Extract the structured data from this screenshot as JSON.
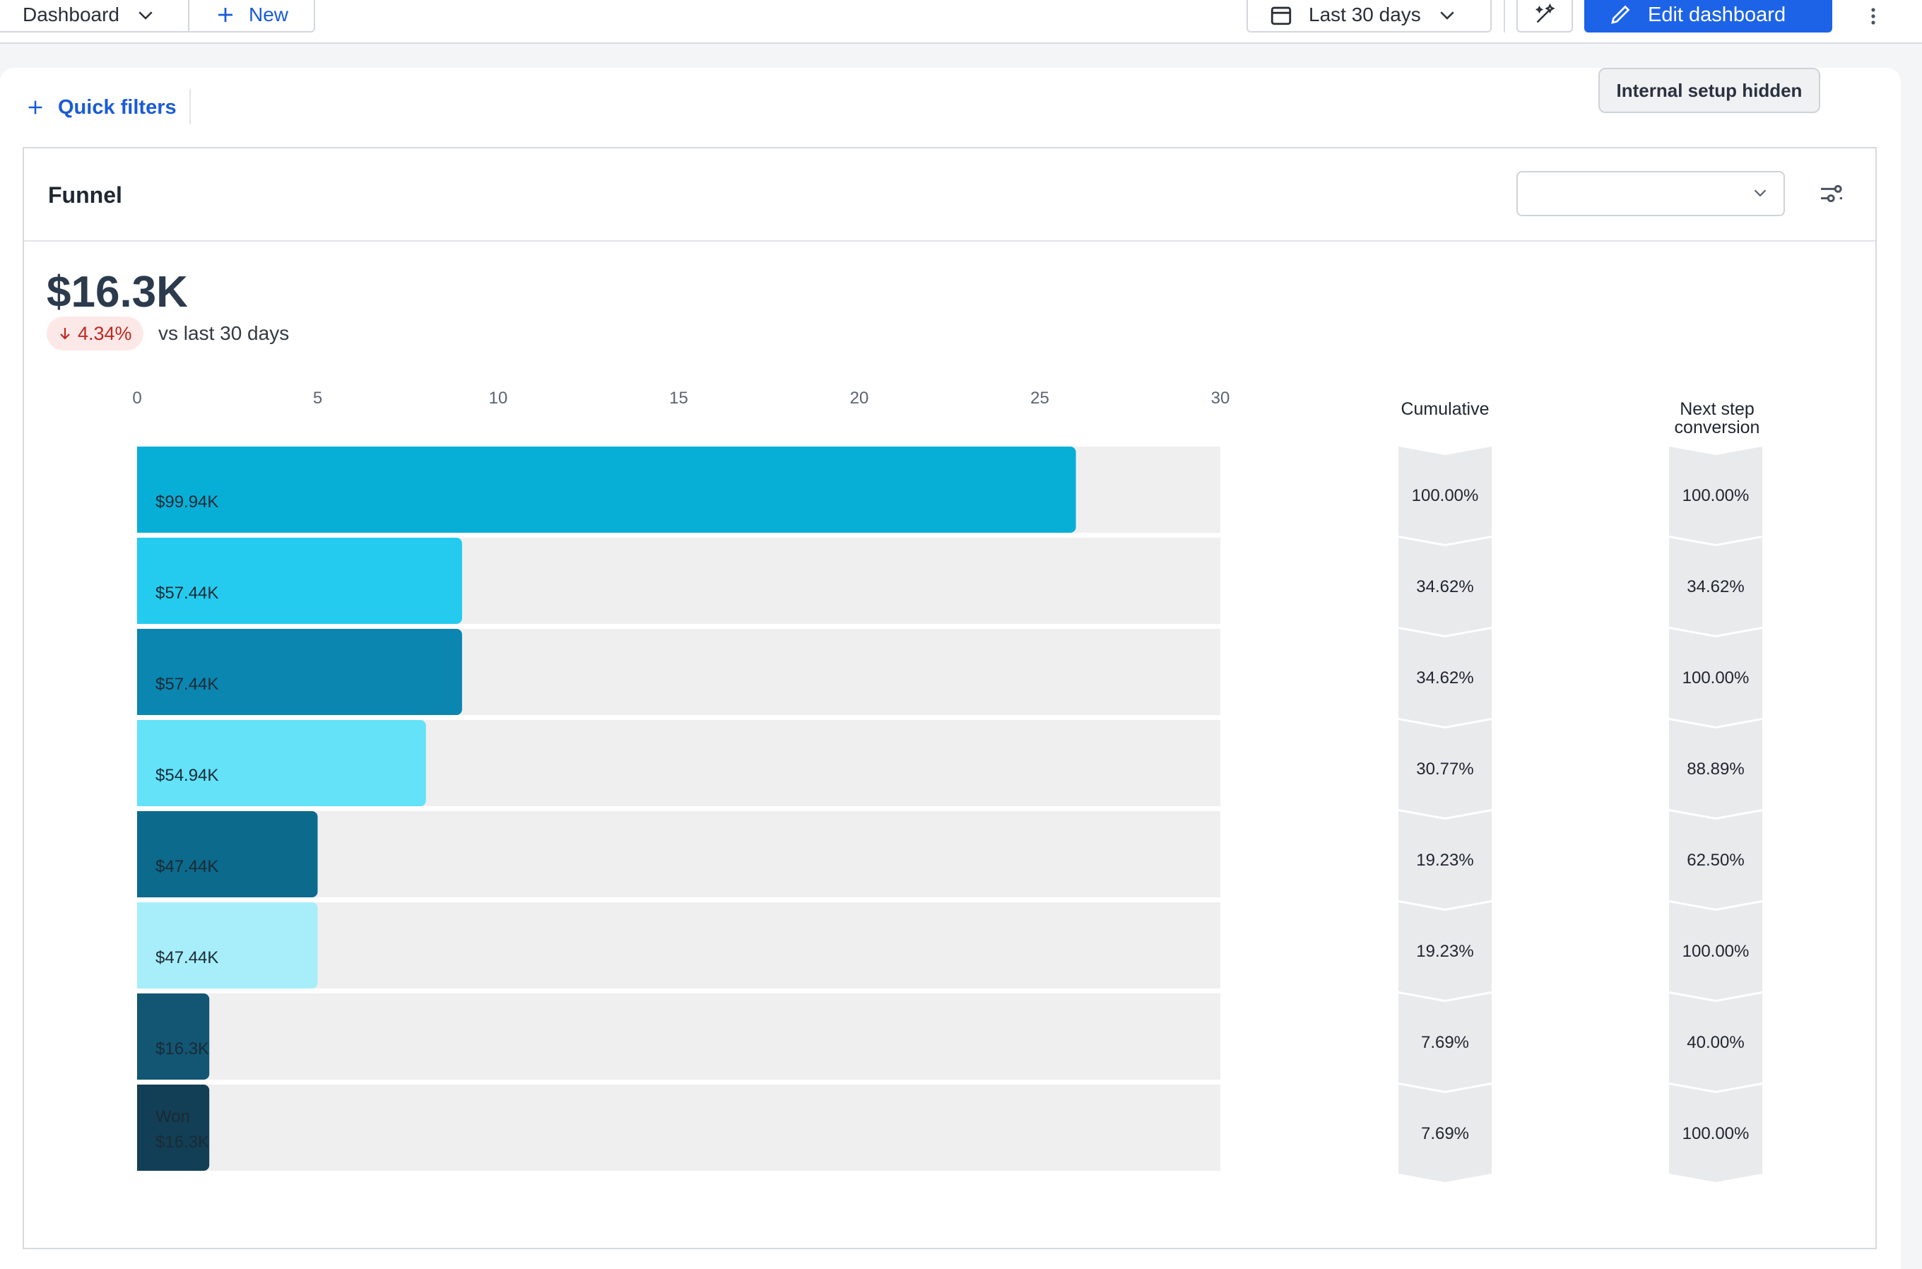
{
  "toolbar": {
    "dashboard_label": "Dashboard",
    "new_label": "New",
    "date_range_label": "Last 30 days",
    "edit_label": "Edit dashboard",
    "more_icon": "more-vertical-icon"
  },
  "filters": {
    "quick_filters_label": "Quick filters",
    "internal_setup_label": "Internal setup hidden"
  },
  "widget": {
    "title": "Funnel",
    "select_value": "",
    "kpi_value": "$16.3K",
    "kpi_delta": "4.34%",
    "kpi_compare": "vs last 30 days"
  },
  "table_headers": {
    "cumulative": "Cumulative",
    "next_step_line1": "Next step",
    "next_step_line2": "conversion"
  },
  "colors": {
    "accent": "#1d63e8",
    "negative": "#c0291f",
    "track": "#efeff0",
    "arrow_bg": "#e9eaec"
  },
  "chart_data": {
    "type": "bar",
    "orientation": "horizontal",
    "x_ticks": [
      0,
      5,
      10,
      15,
      20,
      25,
      30
    ],
    "xlim": [
      0,
      30
    ],
    "stages": [
      {
        "label": "",
        "value_label": "$99.94K",
        "count": 26,
        "cumulative": "100.00%",
        "next_step": "100.00%",
        "color": "#07afd6"
      },
      {
        "label": "",
        "value_label": "$57.44K",
        "count": 9,
        "cumulative": "34.62%",
        "next_step": "34.62%",
        "color": "#24cbee"
      },
      {
        "label": "",
        "value_label": "$57.44K",
        "count": 9,
        "cumulative": "34.62%",
        "next_step": "100.00%",
        "color": "#0b86b0"
      },
      {
        "label": "",
        "value_label": "$54.94K",
        "count": 8,
        "cumulative": "30.77%",
        "next_step": "88.89%",
        "color": "#63e2f8"
      },
      {
        "label": "",
        "value_label": "$47.44K",
        "count": 5,
        "cumulative": "19.23%",
        "next_step": "62.50%",
        "color": "#0c6a8c"
      },
      {
        "label": "",
        "value_label": "$47.44K",
        "count": 5,
        "cumulative": "19.23%",
        "next_step": "100.00%",
        "color": "#a7eefa"
      },
      {
        "label": "",
        "value_label": "$16.3K",
        "count": 2,
        "cumulative": "7.69%",
        "next_step": "40.00%",
        "color": "#125673"
      },
      {
        "label": "Won",
        "value_label": "$16.3K",
        "count": 2,
        "cumulative": "7.69%",
        "next_step": "100.00%",
        "color": "#123f55"
      }
    ]
  }
}
